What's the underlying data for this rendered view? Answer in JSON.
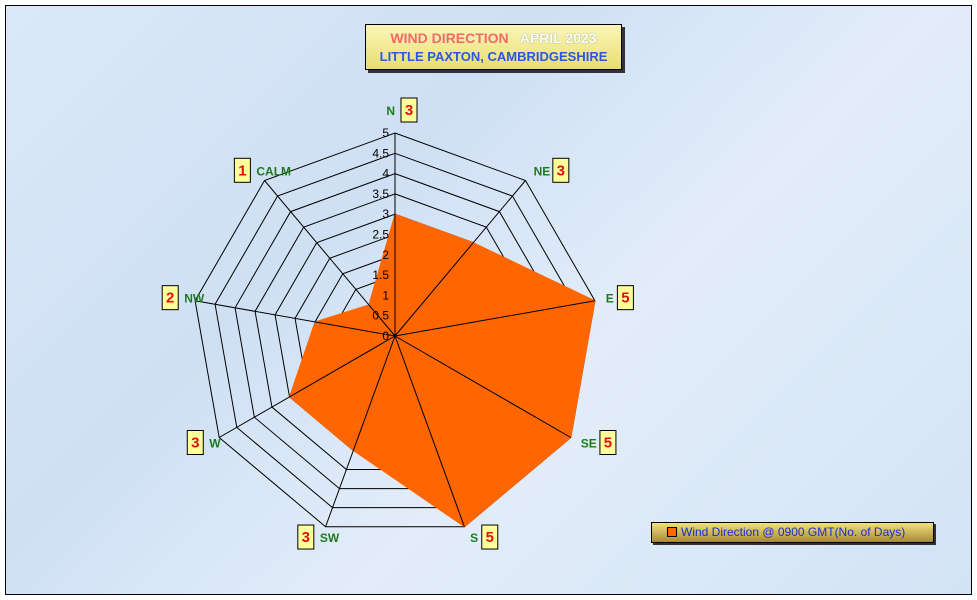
{
  "title": {
    "main": "WIND DIRECTION",
    "date": "APRIL 2023",
    "subtitle": "LITTLE PAXTON, CAMBRIDGESHIRE"
  },
  "legend": {
    "label": "Wind Direction @ 0900 GMT(No. of Days)",
    "placement": "bottom-right"
  },
  "colors": {
    "series": "#ff6600",
    "category_label": "#1f7a1f",
    "value_label": "#e01010",
    "label_box": "#ffff99"
  },
  "chart_data": {
    "type": "radar",
    "categories": [
      "N",
      "NE",
      "E",
      "SE",
      "S",
      "SW",
      "W",
      "NW",
      "CALM"
    ],
    "series": [
      {
        "name": "Wind Direction @ 0900 GMT(No. of Days)",
        "values": [
          3,
          3,
          5,
          5,
          5,
          3,
          3,
          2,
          1
        ]
      }
    ],
    "ticks": [
      "0",
      "0.5",
      "1",
      "1.5",
      "2",
      "2.5",
      "3",
      "3.5",
      "4",
      "4.5",
      "5"
    ],
    "rlim": [
      0,
      5
    ],
    "grid": true
  }
}
